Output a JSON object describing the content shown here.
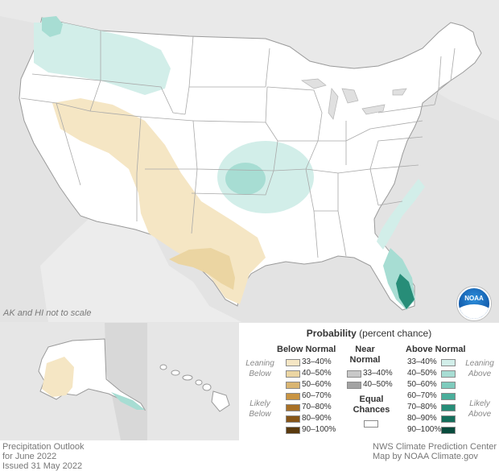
{
  "map": {
    "note": "AK and HI not to scale"
  },
  "legend": {
    "title_bold": "Probability",
    "title_rest": " (percent chance)",
    "below": {
      "header": "Below Normal",
      "leaning": [
        "Leaning",
        "Below"
      ],
      "likely": [
        "Likely",
        "Below"
      ],
      "items": [
        {
          "label": "33–40%",
          "color": "#f5e6c4"
        },
        {
          "label": "40–50%",
          "color": "#ebd5a2"
        },
        {
          "label": "50–60%",
          "color": "#d9b572"
        },
        {
          "label": "60–70%",
          "color": "#c99442"
        },
        {
          "label": "70–80%",
          "color": "#a87026"
        },
        {
          "label": "80–90%",
          "color": "#865518"
        },
        {
          "label": "90–100%",
          "color": "#5a3a0e"
        }
      ]
    },
    "near": {
      "header": [
        "Near",
        "Normal"
      ],
      "items": [
        {
          "label": "33–40%",
          "color": "#c8c8c8"
        },
        {
          "label": "40–50%",
          "color": "#a3a3a3"
        }
      ]
    },
    "equal": {
      "header": [
        "Equal",
        "Chances"
      ],
      "color": "#ffffff"
    },
    "above": {
      "header": "Above Normal",
      "leaning": [
        "Leaning",
        "Above"
      ],
      "likely": [
        "Likely",
        "Above"
      ],
      "items": [
        {
          "label": "33–40%",
          "color": "#d2eee9"
        },
        {
          "label": "40–50%",
          "color": "#a7ddd3"
        },
        {
          "label": "50–60%",
          "color": "#7fcbbd"
        },
        {
          "label": "60–70%",
          "color": "#4aae9b"
        },
        {
          "label": "70–80%",
          "color": "#278d78"
        },
        {
          "label": "80–90%",
          "color": "#146e5b"
        },
        {
          "label": "90–100%",
          "color": "#084b3d"
        }
      ]
    }
  },
  "footer": {
    "left": [
      "Precipitation Outlook",
      "for June 2022",
      "Issued 31 May 2022"
    ],
    "right": [
      "NWS Climate Prediction Center",
      "Map by NOAA Climate.gov"
    ]
  },
  "logo": {
    "text": "NOAA"
  }
}
